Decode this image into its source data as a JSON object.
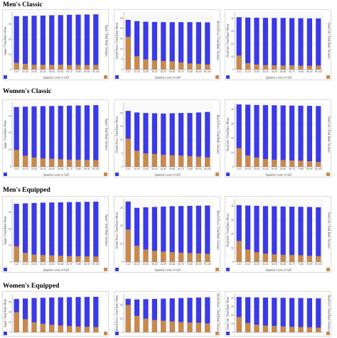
{
  "colors": {
    "mean": "#3a3ae6",
    "variance": "#c8894a",
    "frame": "#d0d0d0"
  },
  "categories": [
    "0-10",
    "10-20",
    "20-30",
    "30-40",
    "40-50",
    "50-60",
    "60-70",
    "70-80",
    "80-90",
    "90-100"
  ],
  "rows": [
    {
      "title": "Men's Classic",
      "xlabel": "Quantile Level of GLP",
      "panels": [
        {
          "ylabel": "Squat / Total Ratio Mean",
          "y2label": "Squat / Total Ratio Variance",
          "yticks": [
            "0",
            "10",
            "20",
            "30"
          ],
          "ymax": 38,
          "mean": [
            35.3,
            35.4,
            35.6,
            35.7,
            35.9,
            36.0,
            36.2,
            36.3,
            36.4,
            36.5
          ],
          "var": [
            4.5,
            3.8,
            3.2,
            3.2,
            3.1,
            3.2,
            3.0,
            3.1,
            3.0,
            3.1
          ]
        },
        {
          "ylabel": "Bench Press / Total Ratio Mean",
          "y2label": "Bench Press / Total Ratio Variance",
          "yticks": [
            "0",
            "5",
            "10",
            "15",
            "20",
            "25"
          ],
          "ymax": 28,
          "mean": [
            24.2,
            23.6,
            23.3,
            23.2,
            23.1,
            23.1,
            23.1,
            23.1,
            23.1,
            23.0
          ],
          "var": [
            16.0,
            6.5,
            5.0,
            4.5,
            4.2,
            4.0,
            3.5,
            3.0,
            2.8,
            2.5
          ]
        },
        {
          "ylabel": "Dead Lift / Total Ratio Mean",
          "y2label": "Dead Lift / Total Ratio Variance",
          "yticks": [
            "0",
            "10",
            "20",
            "30",
            "40"
          ],
          "ymax": 45,
          "mean": [
            41.0,
            40.7,
            40.6,
            40.5,
            40.4,
            40.4,
            40.3,
            40.2,
            40.1,
            40.0
          ],
          "var": [
            11.0,
            5.0,
            4.0,
            3.5,
            3.4,
            3.2,
            3.3,
            3.1,
            3.0,
            3.2
          ]
        }
      ]
    },
    {
      "title": "Women's Classic",
      "xlabel": "Quantile Level of GLP",
      "panels": [
        {
          "ylabel": "Squat / Total Ratio Mean",
          "y2label": "Squat / Total Ratio Variance",
          "yticks": [
            "0",
            "10",
            "20",
            "30"
          ],
          "ymax": 38,
          "mean": [
            35.2,
            35.4,
            35.6,
            35.7,
            35.8,
            35.9,
            36.0,
            36.1,
            36.2,
            36.3
          ],
          "var": [
            10.0,
            6.5,
            5.5,
            5.0,
            4.8,
            4.5,
            4.3,
            4.2,
            4.1,
            4.0
          ]
        },
        {
          "ylabel": "Bench Press / Total Ratio Mean",
          "y2label": "Bench Press / Total Ratio Variance",
          "yticks": [
            "0",
            "5",
            "10",
            "15",
            "20"
          ],
          "ymax": 24,
          "mean": [
            20.8,
            20.2,
            20.0,
            19.9,
            19.8,
            19.9,
            20.0,
            20.0,
            20.2,
            20.4
          ],
          "var": [
            10.5,
            6.0,
            5.0,
            4.8,
            4.5,
            4.3,
            4.2,
            4.0,
            3.8,
            3.5
          ]
        },
        {
          "ylabel": "Dead Lift / Total Ratio Mean",
          "y2label": "Dead Lift / Total Ratio Variance",
          "yticks": [
            "0",
            "10",
            "20",
            "30",
            "40"
          ],
          "ymax": 45,
          "mean": [
            43.5,
            43.3,
            43.1,
            43.0,
            42.9,
            42.8,
            42.7,
            42.6,
            42.5,
            42.4
          ],
          "var": [
            13.0,
            8.0,
            6.5,
            5.5,
            5.0,
            4.8,
            4.5,
            4.3,
            4.0,
            3.5
          ]
        }
      ]
    },
    {
      "title": "Men's Equipped",
      "xlabel": "Quantile Level of GLP",
      "panels": [
        {
          "ylabel": "Squat / Total Ratio Mean",
          "y2label": "Squat / Total Ratio Variance",
          "yticks": [
            "0",
            "10",
            "20",
            "30"
          ],
          "ymax": 38,
          "mean": [
            35.0,
            35.3,
            35.5,
            35.7,
            35.8,
            35.9,
            36.0,
            36.1,
            36.2,
            36.3
          ],
          "var": [
            9.5,
            5.5,
            4.5,
            4.2,
            4.0,
            3.8,
            3.6,
            3.5,
            3.4,
            3.3
          ]
        },
        {
          "ylabel": "Bench Press / Total Ratio Mean",
          "y2label": "Bench Press / Total Ratio Variance",
          "yticks": [
            "0",
            "10",
            "20",
            "30"
          ],
          "ymax": 35,
          "mean": [
            33.5,
            30.0,
            30.3,
            30.5,
            30.7,
            30.9,
            31.0,
            31.1,
            31.2,
            31.3
          ],
          "var": [
            18.0,
            9.0,
            7.0,
            6.2,
            5.8,
            5.5,
            5.2,
            5.0,
            4.8,
            4.6
          ]
        },
        {
          "ylabel": "Dead Lift / Total Ratio Mean",
          "y2label": "Dead Lift / Total Ratio Variance",
          "yticks": [
            "0",
            "10",
            "20",
            "30",
            "40"
          ],
          "ymax": 45,
          "mean": [
            40.5,
            40.2,
            40.0,
            39.8,
            39.7,
            39.5,
            39.4,
            39.3,
            39.2,
            39.0
          ],
          "var": [
            15.0,
            9.0,
            7.0,
            6.0,
            5.5,
            5.2,
            5.0,
            4.8,
            4.5,
            4.2
          ]
        }
      ]
    },
    {
      "title": "Women's Equipped",
      "xlabel": "",
      "panels": [
        {
          "ylabel": "Squat / Total Ratio Mean",
          "y2label": "",
          "yticks": [
            "0",
            "10",
            "20",
            "30"
          ],
          "ymax": 38,
          "mean": [
            33.0,
            33.5,
            34.0,
            34.2,
            34.5,
            34.7,
            34.8,
            35.0,
            35.1,
            35.2
          ],
          "var": [
            20.0,
            13.0,
            10.0,
            8.5,
            7.5,
            6.8,
            6.2,
            5.8,
            5.5,
            5.2
          ]
        },
        {
          "ylabel": "Bench Press / Total Ratio Mean",
          "y2label": "Bench Press / Total Ratio Variance",
          "yticks": [
            "0",
            "10",
            "20"
          ],
          "ymax": 28,
          "mean": [
            24.5,
            24.0,
            24.2,
            24.4,
            24.6,
            24.8,
            25.0,
            25.2,
            25.4,
            25.6
          ],
          "var": [
            20.0,
            12.0,
            10.0,
            9.0,
            8.5,
            8.0,
            7.5,
            7.2,
            7.0,
            6.5
          ]
        },
        {
          "ylabel": "Dead Lift / Total Ratio Mean",
          "y2label": "Dead Lift / Total Ratio Variance",
          "yticks": [
            "0",
            "10",
            "20",
            "30",
            "40"
          ],
          "ymax": 45,
          "mean": [
            41.5,
            41.2,
            41.0,
            40.8,
            40.6,
            40.5,
            40.3,
            40.2,
            40.0,
            39.8
          ],
          "var": [
            18.0,
            11.0,
            9.0,
            8.0,
            7.5,
            7.0,
            6.5,
            6.2,
            6.0,
            5.5
          ]
        }
      ]
    }
  ],
  "chart_data": [
    {
      "type": "bar",
      "group": "Men's Classic",
      "ylabel": "Squat / Total Ratio Mean",
      "y2label": "Squat / Total Ratio Variance",
      "xlabel": "Quantile Level of GLP",
      "categories": [
        "0-10",
        "10-20",
        "20-30",
        "30-40",
        "40-50",
        "50-60",
        "60-70",
        "70-80",
        "80-90",
        "90-100"
      ],
      "series": [
        {
          "values": [
            35.3,
            35.4,
            35.6,
            35.7,
            35.9,
            36.0,
            36.2,
            36.3,
            36.4,
            36.5
          ]
        },
        {
          "values": [
            4.5,
            3.8,
            3.2,
            3.2,
            3.1,
            3.2,
            3.0,
            3.1,
            3.0,
            3.1
          ]
        }
      ]
    },
    {
      "type": "bar",
      "group": "Men's Classic",
      "ylabel": "Bench Press / Total Ratio Mean",
      "y2label": "Bench Press / Total Ratio Variance",
      "xlabel": "Quantile Level of GLP",
      "categories": [
        "0-10",
        "10-20",
        "20-30",
        "30-40",
        "40-50",
        "50-60",
        "60-70",
        "70-80",
        "80-90",
        "90-100"
      ],
      "series": [
        {
          "values": [
            24.2,
            23.6,
            23.3,
            23.2,
            23.1,
            23.1,
            23.1,
            23.1,
            23.1,
            23.0
          ]
        },
        {
          "values": [
            16.0,
            6.5,
            5.0,
            4.5,
            4.2,
            4.0,
            3.5,
            3.0,
            2.8,
            2.5
          ]
        }
      ]
    },
    {
      "type": "bar",
      "group": "Men's Classic",
      "ylabel": "Dead Lift / Total Ratio Mean",
      "y2label": "Dead Lift / Total Ratio Variance",
      "xlabel": "Quantile Level of GLP",
      "categories": [
        "0-10",
        "10-20",
        "20-30",
        "30-40",
        "40-50",
        "50-60",
        "60-70",
        "70-80",
        "80-90",
        "90-100"
      ],
      "series": [
        {
          "values": [
            41.0,
            40.7,
            40.6,
            40.5,
            40.4,
            40.4,
            40.3,
            40.2,
            40.1,
            40.0
          ]
        },
        {
          "values": [
            11.0,
            5.0,
            4.0,
            3.5,
            3.4,
            3.2,
            3.3,
            3.1,
            3.0,
            3.2
          ]
        }
      ]
    },
    {
      "type": "bar",
      "group": "Women's Classic",
      "ylabel": "Squat / Total Ratio Mean",
      "y2label": "Squat / Total Ratio Variance",
      "xlabel": "Quantile Level of GLP",
      "categories": [
        "0-10",
        "10-20",
        "20-30",
        "30-40",
        "40-50",
        "50-60",
        "60-70",
        "70-80",
        "80-90",
        "90-100"
      ],
      "series": [
        {
          "values": [
            35.2,
            35.4,
            35.6,
            35.7,
            35.8,
            35.9,
            36.0,
            36.1,
            36.2,
            36.3
          ]
        },
        {
          "values": [
            10.0,
            6.5,
            5.5,
            5.0,
            4.8,
            4.5,
            4.3,
            4.2,
            4.1,
            4.0
          ]
        }
      ]
    },
    {
      "type": "bar",
      "group": "Women's Classic",
      "ylabel": "Bench Press / Total Ratio Mean",
      "y2label": "Bench Press / Total Ratio Variance",
      "xlabel": "Quantile Level of GLP",
      "categories": [
        "0-10",
        "10-20",
        "20-30",
        "30-40",
        "40-50",
        "50-60",
        "60-70",
        "70-80",
        "80-90",
        "90-100"
      ],
      "series": [
        {
          "values": [
            20.8,
            20.2,
            20.0,
            19.9,
            19.8,
            19.9,
            20.0,
            20.0,
            20.2,
            20.4
          ]
        },
        {
          "values": [
            10.5,
            6.0,
            5.0,
            4.8,
            4.5,
            4.3,
            4.2,
            4.0,
            3.8,
            3.5
          ]
        }
      ]
    },
    {
      "type": "bar",
      "group": "Women's Classic",
      "ylabel": "Dead Lift / Total Ratio Mean",
      "y2label": "Dead Lift / Total Ratio Variance",
      "xlabel": "Quantile Level of GLP",
      "categories": [
        "0-10",
        "10-20",
        "20-30",
        "30-40",
        "40-50",
        "50-60",
        "60-70",
        "70-80",
        "80-90",
        "90-100"
      ],
      "series": [
        {
          "values": [
            43.5,
            43.3,
            43.1,
            43.0,
            42.9,
            42.8,
            42.7,
            42.6,
            42.5,
            42.4
          ]
        },
        {
          "values": [
            13.0,
            8.0,
            6.5,
            5.5,
            5.0,
            4.8,
            4.5,
            4.3,
            4.0,
            3.5
          ]
        }
      ]
    },
    {
      "type": "bar",
      "group": "Men's Equipped",
      "ylabel": "Squat / Total Ratio Mean",
      "y2label": "Squat / Total Ratio Variance",
      "xlabel": "Quantile Level of GLP",
      "categories": [
        "0-10",
        "10-20",
        "20-30",
        "30-40",
        "40-50",
        "50-60",
        "60-70",
        "70-80",
        "80-90",
        "90-100"
      ],
      "series": [
        {
          "values": [
            35.0,
            35.3,
            35.5,
            35.7,
            35.8,
            35.9,
            36.0,
            36.1,
            36.2,
            36.3
          ]
        },
        {
          "values": [
            9.5,
            5.5,
            4.5,
            4.2,
            4.0,
            3.8,
            3.6,
            3.5,
            3.4,
            3.3
          ]
        }
      ]
    },
    {
      "type": "bar",
      "group": "Men's Equipped",
      "ylabel": "Bench Press / Total Ratio Mean",
      "y2label": "Bench Press / Total Ratio Variance",
      "xlabel": "Quantile Level of GLP",
      "categories": [
        "0-10",
        "10-20",
        "20-30",
        "30-40",
        "40-50",
        "50-60",
        "60-70",
        "70-80",
        "80-90",
        "90-100"
      ],
      "series": [
        {
          "values": [
            33.5,
            30.0,
            30.3,
            30.5,
            30.7,
            30.9,
            31.0,
            31.1,
            31.2,
            31.3
          ]
        },
        {
          "values": [
            18.0,
            9.0,
            7.0,
            6.2,
            5.8,
            5.5,
            5.2,
            5.0,
            4.8,
            4.6
          ]
        }
      ]
    },
    {
      "type": "bar",
      "group": "Men's Equipped",
      "ylabel": "Dead Lift / Total Ratio Mean",
      "y2label": "Dead Lift / Total Ratio Variance",
      "xlabel": "Quantile Level of GLP",
      "categories": [
        "0-10",
        "10-20",
        "20-30",
        "30-40",
        "40-50",
        "50-60",
        "60-70",
        "70-80",
        "80-90",
        "90-100"
      ],
      "series": [
        {
          "values": [
            40.5,
            40.2,
            40.0,
            39.8,
            39.7,
            39.5,
            39.4,
            39.3,
            39.2,
            39.0
          ]
        },
        {
          "values": [
            15.0,
            9.0,
            7.0,
            6.0,
            5.5,
            5.2,
            5.0,
            4.8,
            4.5,
            4.2
          ]
        }
      ]
    },
    {
      "type": "bar",
      "group": "Women's Equipped",
      "ylabel": "Squat / Total Ratio Mean",
      "categories": [
        "0-10",
        "10-20",
        "20-30",
        "30-40",
        "40-50",
        "50-60",
        "60-70",
        "70-80",
        "80-90",
        "90-100"
      ],
      "series": [
        {
          "values": [
            33.0,
            33.5,
            34.0,
            34.2,
            34.5,
            34.7,
            34.8,
            35.0,
            35.1,
            35.2
          ]
        },
        {
          "values": [
            20.0,
            13.0,
            10.0,
            8.5,
            7.5,
            6.8,
            6.2,
            5.8,
            5.5,
            5.2
          ]
        }
      ]
    },
    {
      "type": "bar",
      "group": "Women's Equipped",
      "ylabel": "Bench Press / Total Ratio Mean",
      "y2label": "Bench Press / Total Ratio Variance",
      "categories": [
        "0-10",
        "10-20",
        "20-30",
        "30-40",
        "40-50",
        "50-60",
        "60-70",
        "70-80",
        "80-90",
        "90-100"
      ],
      "series": [
        {
          "values": [
            24.5,
            24.0,
            24.2,
            24.4,
            24.6,
            24.8,
            25.0,
            25.2,
            25.4,
            25.6
          ]
        },
        {
          "values": [
            20.0,
            12.0,
            10.0,
            9.0,
            8.5,
            8.0,
            7.5,
            7.2,
            7.0,
            6.5
          ]
        }
      ]
    },
    {
      "type": "bar",
      "group": "Women's Equipped",
      "ylabel": "Dead Lift / Total Ratio Mean",
      "y2label": "Dead Lift / Total Ratio Variance",
      "categories": [
        "0-10",
        "10-20",
        "20-30",
        "30-40",
        "40-50",
        "50-60",
        "60-70",
        "70-80",
        "80-90",
        "90-100"
      ],
      "series": [
        {
          "values": [
            41.5,
            41.2,
            41.0,
            40.8,
            40.6,
            40.5,
            40.3,
            40.2,
            40.0,
            39.8
          ]
        },
        {
          "values": [
            18.0,
            11.0,
            9.0,
            8.0,
            7.5,
            7.0,
            6.5,
            6.2,
            6.0,
            5.5
          ]
        }
      ]
    }
  ]
}
